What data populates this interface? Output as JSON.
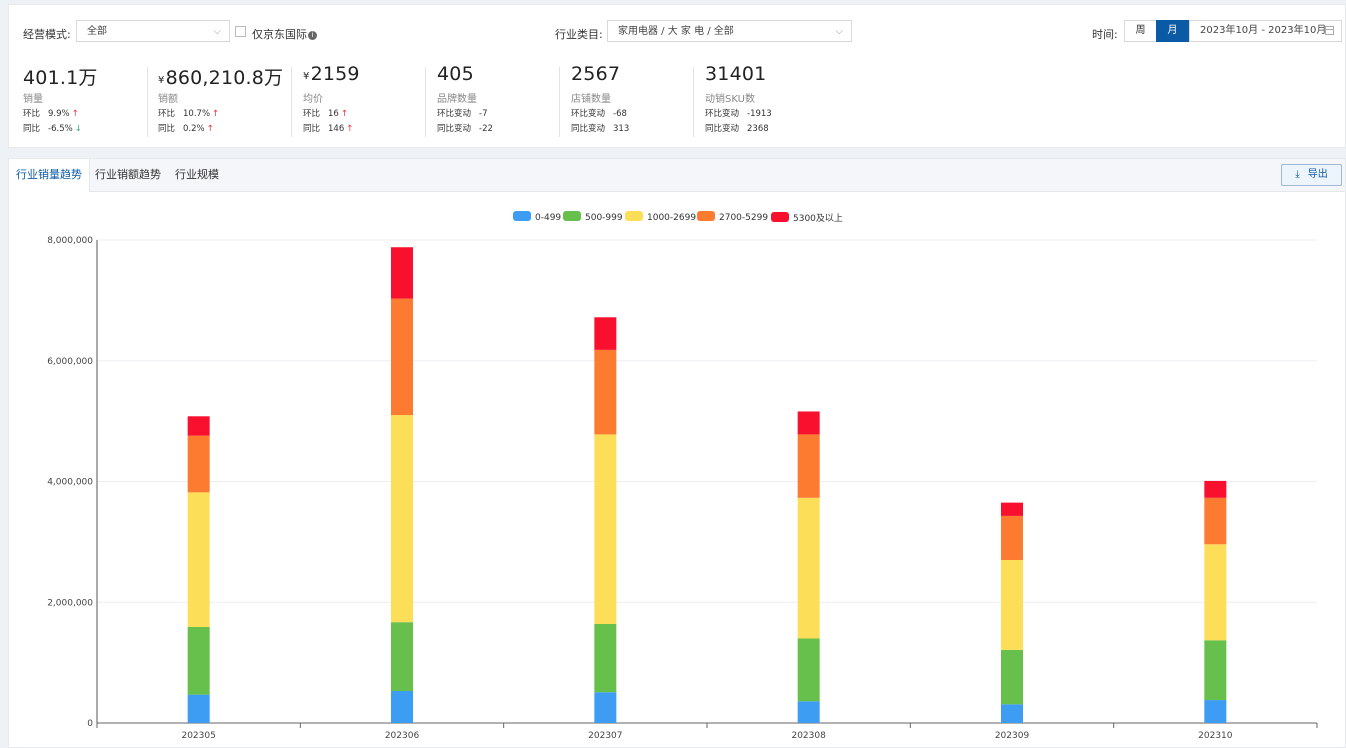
{
  "filters": {
    "mode_label": "经营模式:",
    "mode_value": "全部",
    "jd_intl_label": "仅京东国际",
    "info_glyph": "i",
    "industry_label": "行业类目:",
    "industry_value": "家用电器 / 大 家 电 / 全部",
    "time_label": "时间:",
    "week_label": "周",
    "month_label": "月",
    "date_range": "2023年10月 - 2023年10月"
  },
  "kpis": [
    {
      "value": "401.1万",
      "currency": "",
      "name": "销量",
      "r1_label": "环比",
      "r1_value": "9.9%",
      "r1_dir": "up",
      "r2_label": "同比",
      "r2_value": "-6.5%",
      "r2_dir": "down"
    },
    {
      "value": "860,210.8万",
      "currency": "¥",
      "name": "销额",
      "r1_label": "环比",
      "r1_value": "10.7%",
      "r1_dir": "up",
      "r2_label": "同比",
      "r2_value": "0.2%",
      "r2_dir": "up"
    },
    {
      "value": "2159",
      "currency": "¥",
      "name": "均价",
      "r1_label": "环比",
      "r1_value": "16",
      "r1_dir": "up",
      "r2_label": "同比",
      "r2_value": "146",
      "r2_dir": "up"
    },
    {
      "value": "405",
      "currency": "",
      "name": "品牌数量",
      "r1_label": "环比变动",
      "r1_value": "-7",
      "r1_dir": "",
      "r2_label": "同比变动",
      "r2_value": "-22",
      "r2_dir": ""
    },
    {
      "value": "2567",
      "currency": "",
      "name": "店铺数量",
      "r1_label": "环比变动",
      "r1_value": "-68",
      "r1_dir": "",
      "r2_label": "同比变动",
      "r2_value": "313",
      "r2_dir": ""
    },
    {
      "value": "31401",
      "currency": "",
      "name": "动销SKU数",
      "r1_label": "环比变动",
      "r1_value": "-1913",
      "r1_dir": "",
      "r2_label": "同比变动",
      "r2_value": "2368",
      "r2_dir": ""
    }
  ],
  "arrows": {
    "up": "↑",
    "down": "↓"
  },
  "tabs": [
    "行业销量趋势",
    "行业销额趋势",
    "行业规模"
  ],
  "export_label": "导出",
  "export_icon": "download-icon",
  "colors": {
    "accent": "#0b5aa6",
    "up": "#e8333e",
    "down": "#2fb873"
  },
  "chart_data": {
    "type": "bar",
    "stacked": true,
    "categories": [
      "202305",
      "202306",
      "202307",
      "202308",
      "202309",
      "202310"
    ],
    "series": [
      {
        "name": "0-499",
        "color": "#3d9df2",
        "values": [
          470000,
          530000,
          510000,
          360000,
          310000,
          380000
        ]
      },
      {
        "name": "500-999",
        "color": "#68c04c",
        "values": [
          1120000,
          1140000,
          1130000,
          1040000,
          900000,
          990000
        ]
      },
      {
        "name": "1000-2699",
        "color": "#fdde59",
        "values": [
          2230000,
          3430000,
          3140000,
          2330000,
          1490000,
          1590000
        ]
      },
      {
        "name": "2700-5299",
        "color": "#fd7b31",
        "values": [
          940000,
          1930000,
          1400000,
          1050000,
          730000,
          770000
        ]
      },
      {
        "name": "5300及以上",
        "color": "#f9102f",
        "values": [
          320000,
          850000,
          540000,
          380000,
          220000,
          280000
        ]
      }
    ],
    "ylim": [
      0,
      8000000
    ],
    "yticks": [
      0,
      2000000,
      4000000,
      6000000,
      8000000
    ],
    "ytick_labels": [
      "0",
      "2,000,000",
      "4,000,000",
      "6,000,000",
      "8,000,000"
    ],
    "legend_position": "top-center",
    "grid": true
  }
}
